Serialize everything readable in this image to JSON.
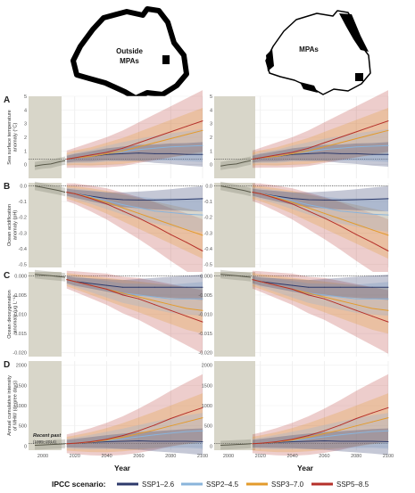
{
  "maps": {
    "left": {
      "label_line1": "Outside",
      "label_line2": "MPAs"
    },
    "right": {
      "label_line1": "MPAs",
      "label_line2": ""
    }
  },
  "colors": {
    "ssp126": "#2d3a6b",
    "ssp245": "#8ab4db",
    "ssp370": "#e39b2c",
    "ssp585": "#b5302a",
    "recent_past_shade": "#d8d6c9",
    "historical": "#5a5a4a"
  },
  "legend": {
    "title": "IPCC scenario:",
    "items": [
      {
        "key": "ssp126",
        "label": "SSP1–2.6"
      },
      {
        "key": "ssp245",
        "label": "SSP2–4.5"
      },
      {
        "key": "ssp370",
        "label": "SSP3–7.0"
      },
      {
        "key": "ssp585",
        "label": "SSP5–8.5"
      }
    ]
  },
  "annotation": {
    "recent_past": "Recent past",
    "recent_past_years": "(1995–2014)"
  },
  "chart_data": {
    "type": "line",
    "xlabel": "Year",
    "xlim": [
      1995,
      2100
    ],
    "xticks": [
      2000,
      2020,
      2040,
      2060,
      2080,
      2100
    ],
    "recent_past_range": [
      1995,
      2014
    ],
    "columns": [
      "Outside MPAs",
      "MPAs"
    ],
    "panels": [
      {
        "label": "A",
        "ylabel": [
          "Sea surface temperature",
          "anomaly (°C)"
        ],
        "ylim": [
          -1,
          5
        ],
        "yticks": [
          0,
          1,
          2,
          3,
          4,
          5
        ],
        "tick_labels": [
          "0",
          "1",
          "2",
          "3",
          "4",
          "5"
        ],
        "x": [
          2015,
          2020,
          2030,
          2040,
          2050,
          2060,
          2070,
          2080,
          2090,
          2100
        ],
        "historical": {
          "x": [
            1995,
            2000,
            2005,
            2010,
            2014
          ],
          "values": [
            -0.1,
            0.0,
            0.05,
            0.2,
            0.3
          ]
        },
        "series": {
          "ssp126": [
            0.4,
            0.5,
            0.6,
            0.75,
            0.8,
            0.85,
            0.8,
            0.8,
            0.75,
            0.75
          ],
          "ssp245": [
            0.4,
            0.5,
            0.6,
            0.8,
            0.95,
            1.1,
            1.2,
            1.3,
            1.35,
            1.4
          ],
          "ssp370": [
            0.4,
            0.5,
            0.6,
            0.8,
            1.0,
            1.3,
            1.6,
            1.9,
            2.2,
            2.5
          ],
          "ssp585": [
            0.4,
            0.5,
            0.7,
            0.9,
            1.2,
            1.6,
            2.0,
            2.4,
            2.8,
            3.2
          ]
        }
      },
      {
        "label": "B",
        "ylabel": [
          "Ocean acidification",
          "anomaly (pH)"
        ],
        "ylim": [
          -0.52,
          0.02
        ],
        "yticks": [
          0,
          -0.1,
          -0.2,
          -0.3,
          -0.4,
          -0.5
        ],
        "tick_labels": [
          "0.0",
          "-0.1",
          "-0.2",
          "-0.3",
          "-0.4",
          "-0.5"
        ],
        "x": [
          2015,
          2020,
          2030,
          2040,
          2050,
          2060,
          2070,
          2080,
          2090,
          2100
        ],
        "historical": {
          "x": [
            1995,
            2000,
            2005,
            2010,
            2014
          ],
          "values": [
            0.0,
            -0.01,
            -0.02,
            -0.03,
            -0.04
          ]
        },
        "series": {
          "ssp126": [
            -0.04,
            -0.05,
            -0.065,
            -0.08,
            -0.088,
            -0.09,
            -0.09,
            -0.088,
            -0.085,
            -0.082
          ],
          "ssp245": [
            -0.04,
            -0.05,
            -0.07,
            -0.095,
            -0.12,
            -0.14,
            -0.16,
            -0.17,
            -0.18,
            -0.185
          ],
          "ssp370": [
            -0.04,
            -0.05,
            -0.075,
            -0.105,
            -0.14,
            -0.175,
            -0.21,
            -0.245,
            -0.28,
            -0.315
          ],
          "ssp585": [
            -0.04,
            -0.05,
            -0.08,
            -0.115,
            -0.16,
            -0.205,
            -0.255,
            -0.31,
            -0.36,
            -0.415
          ]
        }
      },
      {
        "label": "C",
        "ylabel": [
          "Ocean deoxygenation",
          "anomaly (μg L⁻¹)"
        ],
        "ylim": [
          -0.021,
          0.001
        ],
        "yticks": [
          0,
          -0.005,
          -0.01,
          -0.015,
          -0.02
        ],
        "tick_labels": [
          "0.000",
          "-0.005",
          "-0.010",
          "-0.015",
          "-0.020"
        ],
        "x": [
          2015,
          2020,
          2030,
          2040,
          2050,
          2060,
          2070,
          2080,
          2090,
          2100
        ],
        "historical": {
          "x": [
            1995,
            2000,
            2005,
            2010,
            2014
          ],
          "values": [
            0.0004,
            0.0002,
            0.0,
            -0.0002,
            -0.0004
          ]
        },
        "series": {
          "ssp126": [
            -0.001,
            -0.0015,
            -0.002,
            -0.0025,
            -0.003,
            -0.003,
            -0.003,
            -0.003,
            -0.003,
            -0.003
          ],
          "ssp245": [
            -0.001,
            -0.0015,
            -0.0025,
            -0.0035,
            -0.0045,
            -0.005,
            -0.0055,
            -0.006,
            -0.006,
            -0.006
          ],
          "ssp370": [
            -0.001,
            -0.0015,
            -0.0025,
            -0.0035,
            -0.0045,
            -0.0055,
            -0.0065,
            -0.0075,
            -0.0085,
            -0.009
          ],
          "ssp585": [
            -0.001,
            -0.0015,
            -0.0025,
            -0.0035,
            -0.005,
            -0.006,
            -0.0075,
            -0.009,
            -0.0105,
            -0.012
          ]
        }
      },
      {
        "label": "D",
        "ylabel": [
          "Annual cumulative intensity",
          "of MHW (degree days)"
        ],
        "ylim": [
          -100,
          2100
        ],
        "yticks": [
          0,
          500,
          1000,
          1500,
          2000
        ],
        "tick_labels": [
          "0",
          "500",
          "1000",
          "1500",
          "2000"
        ],
        "x": [
          2015,
          2020,
          2030,
          2040,
          2050,
          2060,
          2070,
          2080,
          2090,
          2100
        ],
        "historical": {
          "x": [
            1995,
            2000,
            2005,
            2010,
            2014
          ],
          "values": [
            20,
            30,
            40,
            50,
            60
          ]
        },
        "series": {
          "ssp126": [
            60,
            70,
            90,
            110,
            120,
            130,
            120,
            120,
            120,
            110
          ],
          "ssp245": [
            60,
            70,
            100,
            140,
            180,
            230,
            280,
            320,
            360,
            380
          ],
          "ssp370": [
            60,
            70,
            100,
            150,
            220,
            310,
            400,
            500,
            600,
            700
          ],
          "ssp585": [
            60,
            70,
            110,
            170,
            260,
            380,
            520,
            680,
            820,
            950
          ]
        }
      }
    ]
  }
}
